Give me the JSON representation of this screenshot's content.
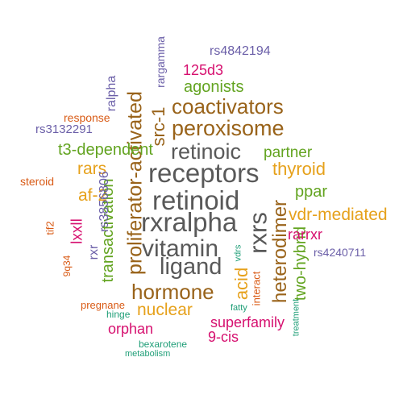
{
  "colors": {
    "gray": "#595959",
    "brown": "#99631a",
    "gold": "#e6a11b",
    "green": "#63a421",
    "magenta": "#d6106f",
    "purple": "#6b5fa8",
    "orange": "#d95b16",
    "teal": "#1f9e77"
  },
  "words": [
    "receptors",
    "retinoid",
    "retinoic",
    "rxralpha",
    "vitamin",
    "ligand",
    "rxrs",
    "peroxisome",
    "coactivators",
    "proliferator-activated",
    "hormone",
    "heterodimer",
    "src-1",
    "thyroid",
    "acid",
    "nuclear",
    "rars",
    "af-2",
    "vdr-mediated",
    "partner",
    "ppar",
    "agonists",
    "t3-dependent",
    "transactivation",
    "two-hybrid",
    "125d3",
    "rarrxr",
    "orphan",
    "superfamily",
    "9-cis",
    "lxxll",
    "rs4842194",
    "rs3132291",
    "rs4240711",
    "rxr",
    "ralpha",
    "rs3856806",
    "rargamma",
    "response",
    "steroid",
    "pregnane",
    "tif2",
    "9q34",
    "interact",
    "hinge",
    "bexarotene",
    "metabolism",
    "vdrs",
    "fatty",
    "treatment"
  ]
}
